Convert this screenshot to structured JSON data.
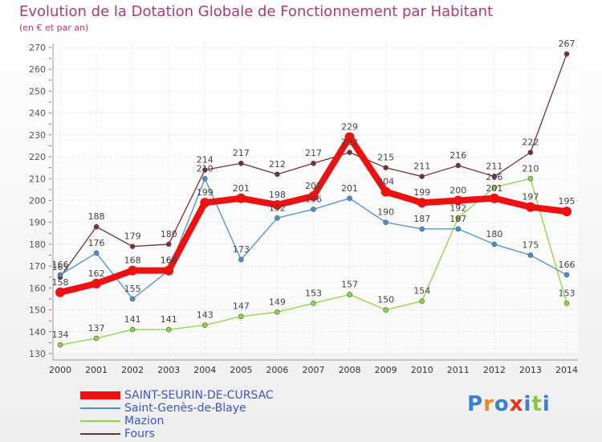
{
  "chart_data": {
    "type": "line",
    "title": "Evolution de la Dotation Globale de Fonctionnement par Habitant",
    "subtitle": "(en € et par an)",
    "xlabel": "",
    "ylabel": "",
    "ylim": [
      130,
      270
    ],
    "yticks": [
      130,
      140,
      150,
      160,
      170,
      180,
      190,
      200,
      210,
      220,
      230,
      240,
      250,
      260,
      270
    ],
    "categories": [
      "2000",
      "2001",
      "2002",
      "2003",
      "2004",
      "2005",
      "2006",
      "2007",
      "2008",
      "2009",
      "2010",
      "2011",
      "2012",
      "2013",
      "2014"
    ],
    "grid": true,
    "legend_position": "bottom-left",
    "series": [
      {
        "name": "Fours",
        "color": "#7a2e38",
        "values": [
          165,
          188,
          179,
          180,
          214,
          217,
          212,
          217,
          222,
          215,
          211,
          216,
          211,
          222,
          267
        ]
      },
      {
        "name": "Mazion",
        "color": "#8fd444",
        "values": [
          134,
          137,
          141,
          141,
          143,
          147,
          149,
          153,
          157,
          150,
          154,
          192,
          206,
          210,
          153
        ]
      },
      {
        "name": "Saint-Genès-de-Blaye",
        "color": "#4a8fd0",
        "values": [
          166,
          176,
          155,
          168,
          210,
          173,
          192,
          196,
          201,
          190,
          187,
          187,
          180,
          175,
          166
        ]
      },
      {
        "name": "SAINT-SEURIN-DE-CURSAC",
        "color": "#ee1111",
        "values": [
          158,
          162,
          168,
          168,
          199,
          201,
          198,
          202,
          229,
          204,
          199,
          200,
          201,
          197,
          195
        ]
      }
    ],
    "legend_order": [
      "SAINT-SEURIN-DE-CURSAC",
      "Saint-Genès-de-Blaye",
      "Mazion",
      "Fours"
    ]
  },
  "brand": {
    "letters": [
      "P",
      "r",
      "o",
      "x",
      "i",
      "t",
      "i"
    ],
    "colors": [
      "#3a7fd0",
      "#f08a1a",
      "#3a7fd0",
      "#e8331a",
      "#3a7fd0",
      "#8cc63f",
      "#3a7fd0"
    ]
  }
}
